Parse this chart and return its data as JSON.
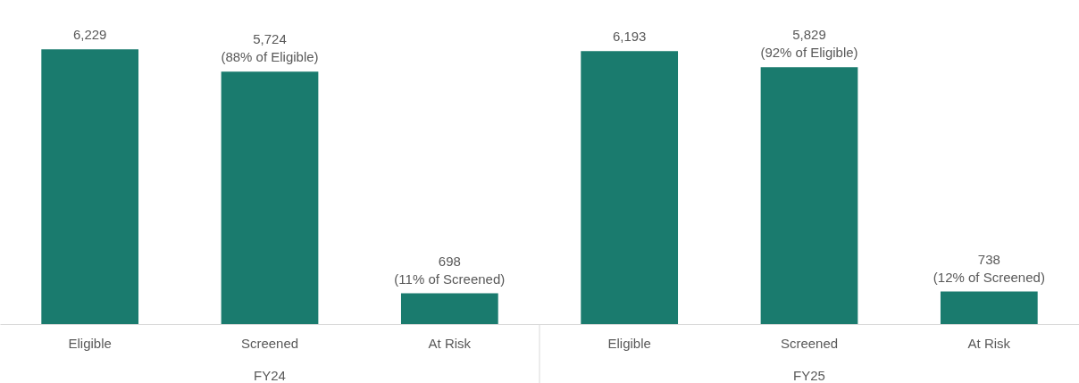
{
  "chart_data": {
    "type": "bar",
    "categories": [
      "Eligible",
      "Screened",
      "At Risk",
      "Eligible",
      "Screened",
      "At Risk"
    ],
    "values": [
      6229,
      5724,
      698,
      6193,
      5829,
      738
    ],
    "color": "#1a7b6e",
    "value_labels": [
      "6,229",
      "5,724\n(88% of Eligible)",
      "698\n(11% of Screened)",
      "6,193",
      "5,829\n(92% of Eligible)",
      "738\n(12% of Screened)"
    ],
    "annotations": [
      "FY24",
      "FY25"
    ],
    "grid": false
  }
}
